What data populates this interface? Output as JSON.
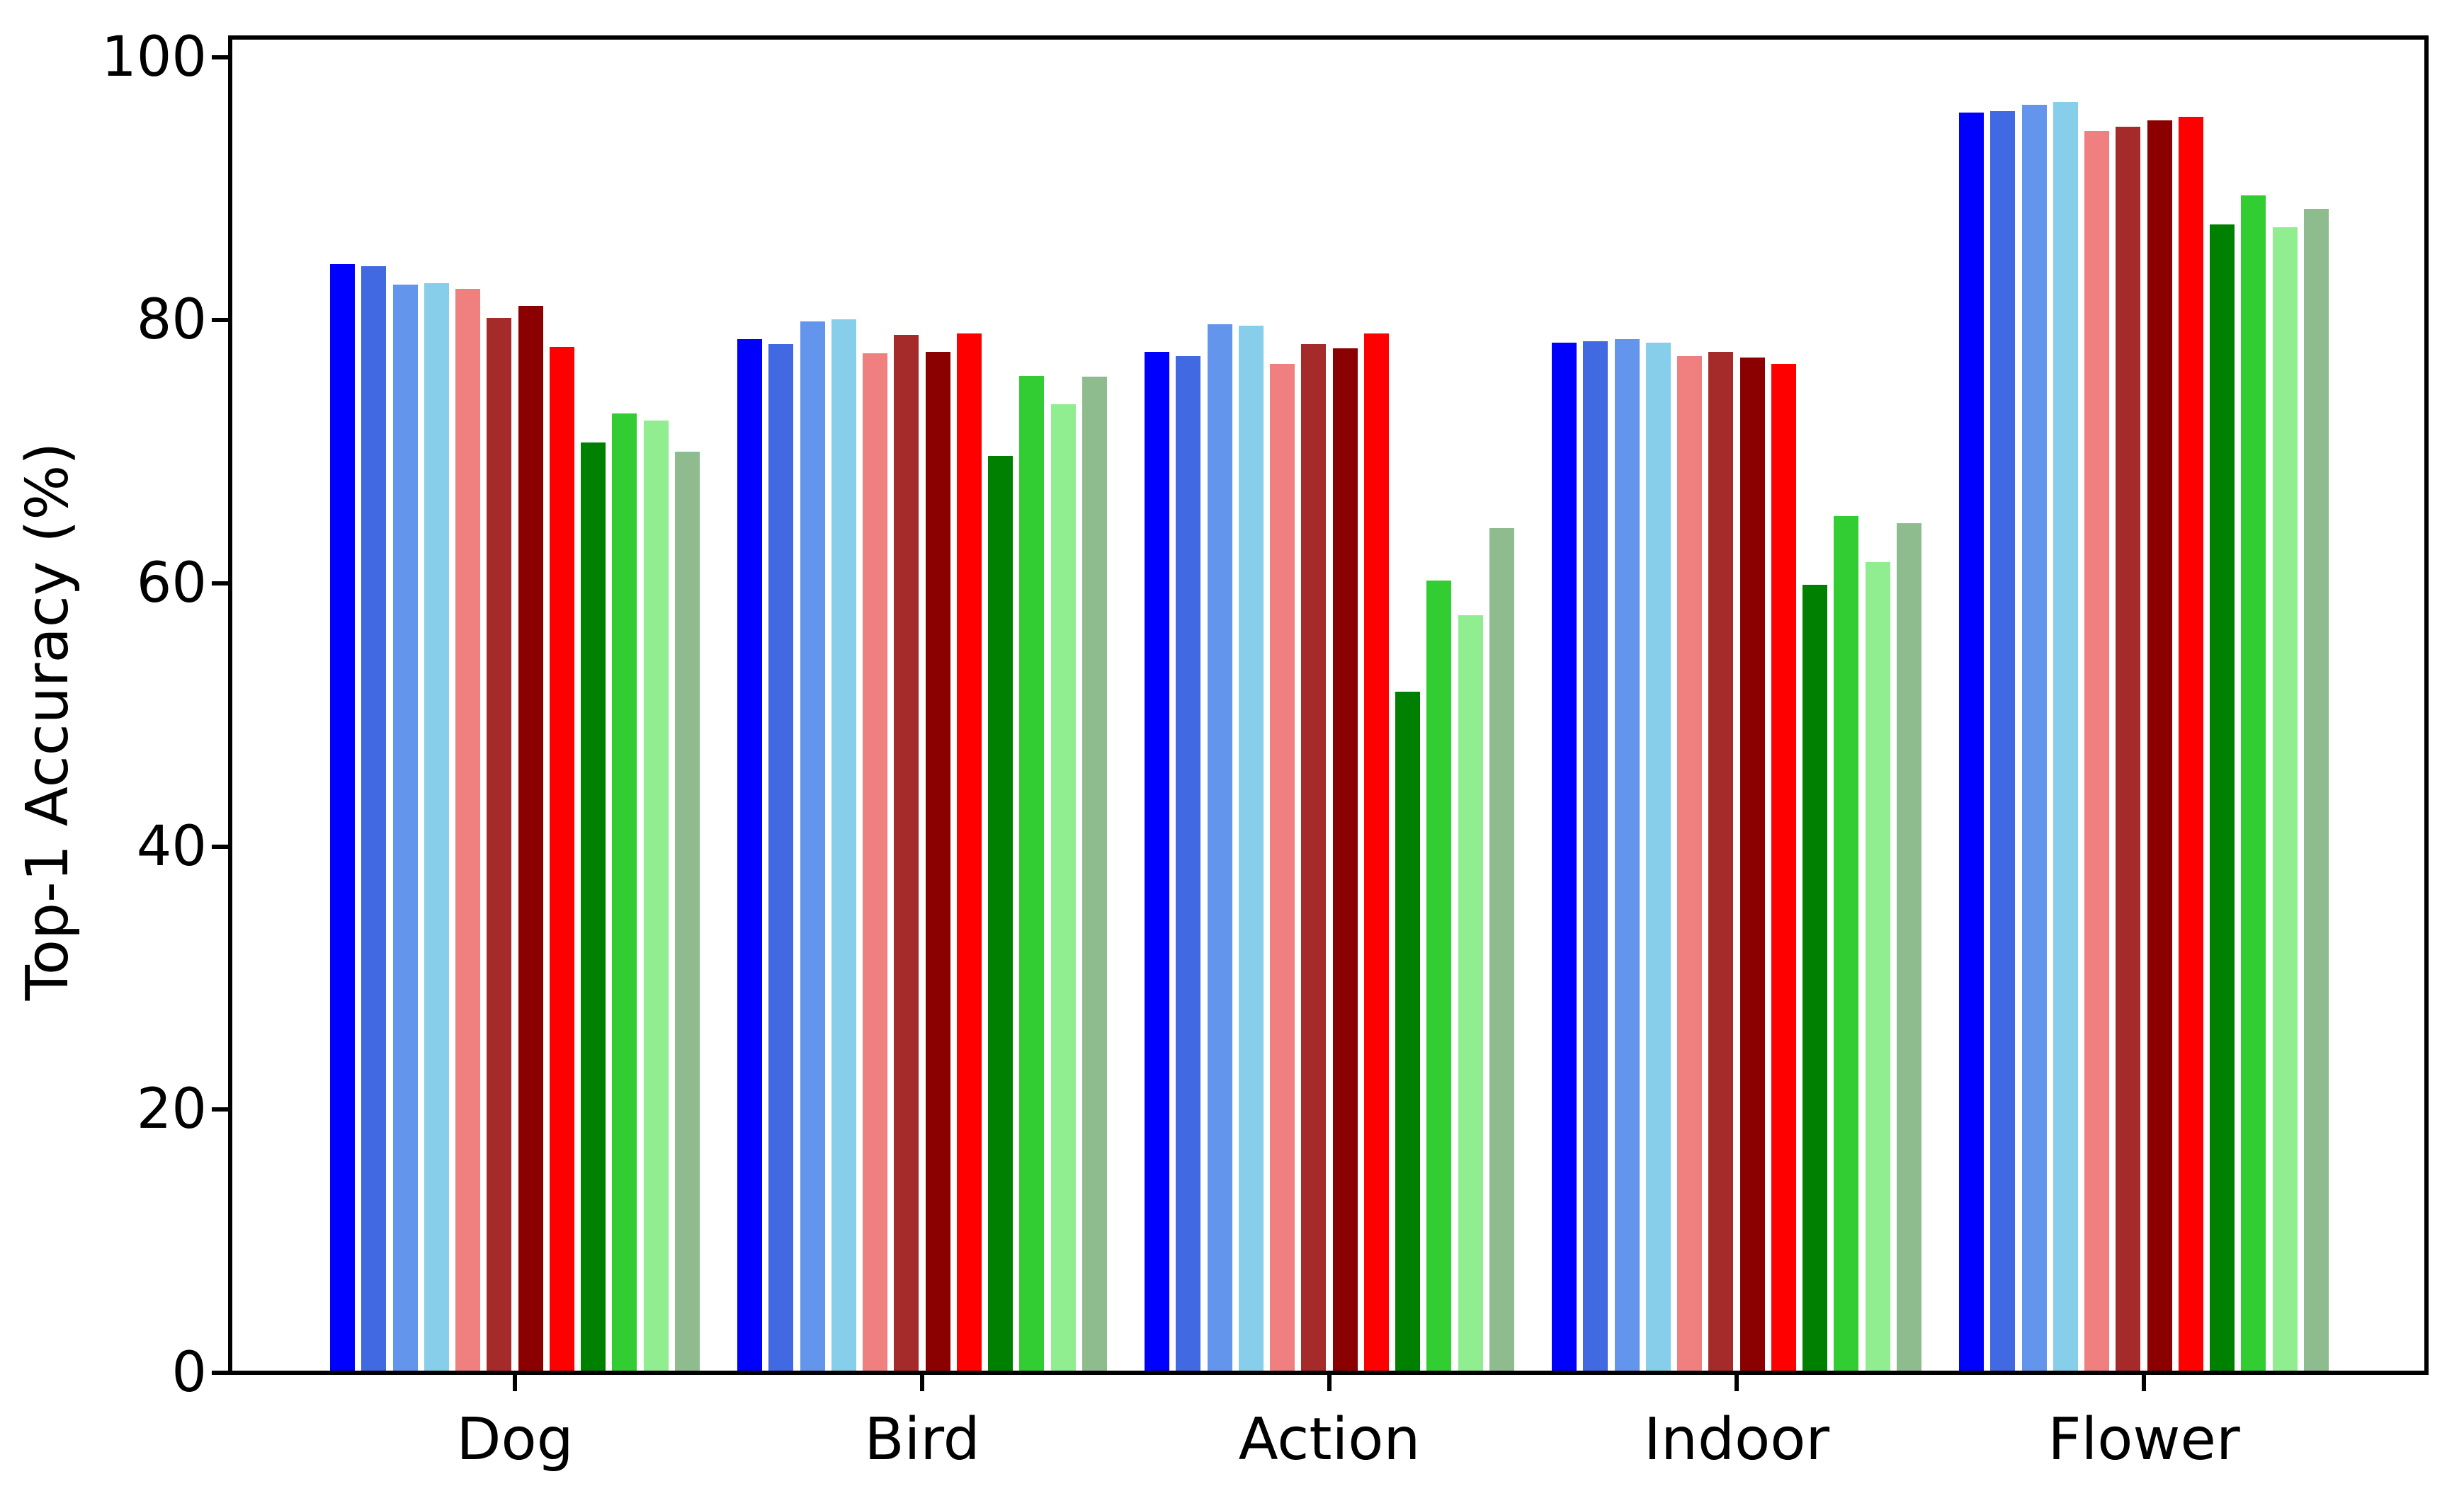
{
  "chart_data": {
    "type": "bar",
    "title": "",
    "xlabel": "",
    "ylabel": "Top-1 Accuracy (%)",
    "categories": [
      "Dog",
      "Bird",
      "Action",
      "Indoor",
      "Flower"
    ],
    "ylim": [
      0,
      101.5
    ],
    "yticks": [
      0,
      20,
      40,
      60,
      80,
      100
    ],
    "grid": false,
    "legend_position": "none",
    "axis_color": "#000000",
    "background_color": "#ffffff",
    "series": [
      {
        "name": "blue",
        "color": "#0000ff",
        "values": [
          84.3,
          78.6,
          77.6,
          78.3,
          95.8
        ]
      },
      {
        "name": "royalblue",
        "color": "#4169e1",
        "values": [
          84.1,
          78.2,
          77.3,
          78.4,
          95.9
        ]
      },
      {
        "name": "cornflowerblue",
        "color": "#6495ed",
        "values": [
          82.7,
          79.9,
          79.7,
          78.6,
          96.4
        ]
      },
      {
        "name": "skyblue",
        "color": "#87ceeb",
        "values": [
          82.8,
          80.1,
          79.6,
          78.3,
          96.6
        ]
      },
      {
        "name": "lightcoral",
        "color": "#f08080",
        "values": [
          82.4,
          77.5,
          76.7,
          77.3,
          94.4
        ]
      },
      {
        "name": "brown",
        "color": "#a52a2a",
        "values": [
          80.2,
          78.9,
          78.2,
          77.6,
          94.7
        ]
      },
      {
        "name": "darkred",
        "color": "#8b0000",
        "values": [
          81.1,
          77.6,
          77.9,
          77.2,
          95.2
        ]
      },
      {
        "name": "red",
        "color": "#ff0000",
        "values": [
          78.0,
          79.0,
          79.0,
          76.7,
          95.5
        ]
      },
      {
        "name": "green",
        "color": "#008000",
        "values": [
          70.7,
          69.7,
          51.8,
          59.9,
          87.3
        ]
      },
      {
        "name": "limegreen",
        "color": "#32cd32",
        "values": [
          72.9,
          75.8,
          60.2,
          65.1,
          89.5
        ]
      },
      {
        "name": "lightgreen",
        "color": "#90ee90",
        "values": [
          72.4,
          73.6,
          57.6,
          61.6,
          87.1
        ]
      },
      {
        "name": "darkseagreen",
        "color": "#8fbc8f",
        "values": [
          70.0,
          75.7,
          64.2,
          64.6,
          88.5
        ]
      }
    ]
  }
}
